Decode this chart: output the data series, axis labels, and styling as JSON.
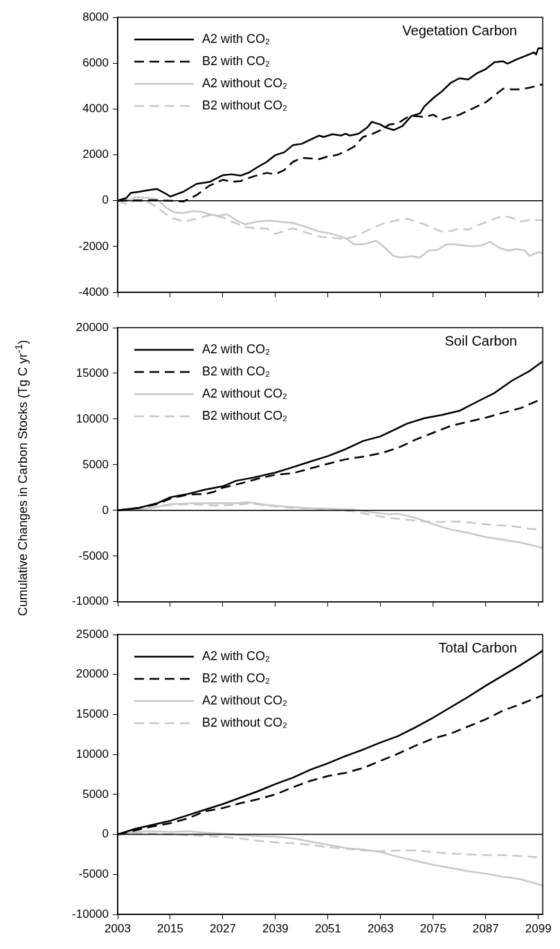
{
  "chart_data": [
    {
      "type": "line",
      "title": "Vegetation Carbon",
      "xlim": [
        2003,
        2100
      ],
      "xticks": [
        2003,
        2015,
        2027,
        2039,
        2051,
        2063,
        2075,
        2087,
        2099
      ],
      "ylim": [
        -4000,
        8000
      ],
      "yticks": [
        -4000,
        -2000,
        0,
        2000,
        4000,
        6000,
        8000
      ],
      "tick_labels": "y",
      "legend": "top left",
      "marker": "none",
      "ref_lines": [
        {
          "axis": "y",
          "value": 0,
          "color": "#000000"
        }
      ],
      "series": [
        {
          "name": "A2 with CO₂",
          "color": "#000000",
          "line_style": "solid",
          "x": [
            2003,
            2005,
            2006,
            2008,
            2010,
            2012,
            2014,
            2015,
            2018,
            2021,
            2024,
            2027,
            2029,
            2031,
            2033,
            2035,
            2037,
            2039,
            2041,
            2043,
            2045,
            2047,
            2049,
            2050,
            2052,
            2054,
            2055,
            2056,
            2058,
            2060,
            2061,
            2063,
            2064,
            2066,
            2068,
            2070,
            2072,
            2073,
            2075,
            2077,
            2079,
            2081,
            2083,
            2085,
            2087,
            2089,
            2091,
            2092,
            2094,
            2096,
            2098,
            2098.5,
            2099,
            2100
          ],
          "values": [
            0,
            120,
            340,
            390,
            460,
            510,
            300,
            180,
            390,
            730,
            820,
            1110,
            1150,
            1090,
            1230,
            1470,
            1690,
            1990,
            2110,
            2420,
            2480,
            2660,
            2840,
            2780,
            2900,
            2840,
            2920,
            2840,
            2920,
            3200,
            3440,
            3320,
            3200,
            3080,
            3260,
            3690,
            3810,
            4110,
            4470,
            4770,
            5140,
            5340,
            5290,
            5560,
            5740,
            6040,
            6080,
            5980,
            6160,
            6310,
            6470,
            6380,
            6650,
            6650
          ]
        },
        {
          "name": "B2 with CO₂",
          "color": "#000000",
          "line_style": "dashed",
          "x": [
            2003,
            2010,
            2015,
            2018,
            2021,
            2024,
            2027,
            2029,
            2031,
            2034,
            2037,
            2039,
            2041,
            2043,
            2045,
            2047,
            2049,
            2051,
            2053,
            2055,
            2057,
            2059,
            2061,
            2063,
            2065,
            2067,
            2069,
            2071,
            2073,
            2075,
            2077,
            2079,
            2081,
            2083,
            2085,
            2087,
            2089,
            2091,
            2093,
            2095,
            2097,
            2099,
            2100
          ],
          "values": [
            0,
            20,
            0,
            -40,
            240,
            660,
            910,
            820,
            850,
            1060,
            1210,
            1150,
            1330,
            1690,
            1870,
            1840,
            1810,
            1930,
            1990,
            2150,
            2360,
            2780,
            2900,
            3080,
            3320,
            3380,
            3630,
            3690,
            3650,
            3750,
            3530,
            3650,
            3750,
            3930,
            4110,
            4290,
            4590,
            4890,
            4860,
            4860,
            4930,
            5020,
            5080
          ]
        },
        {
          "name": "A2 without CO₂",
          "color": "#c8c8c8",
          "line_style": "solid",
          "x": [
            2003,
            2005,
            2007,
            2010,
            2012,
            2014,
            2016,
            2018,
            2020,
            2022,
            2024,
            2026,
            2028,
            2030,
            2032,
            2035,
            2038,
            2041,
            2043,
            2046,
            2049,
            2052,
            2055,
            2057,
            2059,
            2062,
            2064,
            2066,
            2068,
            2070,
            2072,
            2074,
            2076,
            2078,
            2080,
            2082,
            2084,
            2086,
            2088,
            2090,
            2092,
            2094,
            2096,
            2097,
            2099,
            2100
          ],
          "values": [
            0,
            0,
            150,
            120,
            60,
            -300,
            -510,
            -540,
            -460,
            -480,
            -600,
            -660,
            -600,
            -850,
            -1030,
            -910,
            -870,
            -940,
            -970,
            -1150,
            -1350,
            -1450,
            -1630,
            -1910,
            -1910,
            -1750,
            -2050,
            -2420,
            -2480,
            -2420,
            -2480,
            -2180,
            -2150,
            -1910,
            -1910,
            -1960,
            -1990,
            -1960,
            -1790,
            -2050,
            -2180,
            -2110,
            -2180,
            -2420,
            -2240,
            -2300
          ]
        },
        {
          "name": "B2 without CO₂",
          "color": "#c8c8c8",
          "line_style": "dashed",
          "x": [
            2003,
            2005,
            2007,
            2010,
            2012,
            2015,
            2018,
            2021,
            2024,
            2027,
            2029,
            2032,
            2035,
            2037,
            2039,
            2041,
            2043,
            2046,
            2049,
            2052,
            2055,
            2057,
            2059,
            2061,
            2064,
            2067,
            2069,
            2071,
            2073,
            2075,
            2077,
            2079,
            2081,
            2083,
            2085,
            2087,
            2089,
            2091,
            2093,
            2095,
            2097,
            2100
          ],
          "values": [
            0,
            -150,
            0,
            -60,
            -300,
            -730,
            -910,
            -790,
            -630,
            -730,
            -910,
            -1150,
            -1210,
            -1210,
            -1450,
            -1330,
            -1210,
            -1390,
            -1570,
            -1630,
            -1670,
            -1570,
            -1390,
            -1210,
            -970,
            -850,
            -790,
            -910,
            -1030,
            -1210,
            -1350,
            -1330,
            -1210,
            -1270,
            -1090,
            -940,
            -790,
            -660,
            -750,
            -910,
            -850,
            -850
          ]
        }
      ]
    },
    {
      "type": "line",
      "title": "Soil Carbon",
      "ylabel": "Cumulative Changes in Carbon Stocks (Tg C yr$^{-1}$)",
      "xlim": [
        2003,
        2100
      ],
      "xticks": [
        2003,
        2015,
        2027,
        2039,
        2051,
        2063,
        2075,
        2087,
        2099
      ],
      "ylim": [
        -10000,
        20000
      ],
      "yticks": [
        -10000,
        -5000,
        0,
        5000,
        10000,
        15000,
        20000
      ],
      "tick_labels": "y",
      "legend": "top left",
      "marker": "none",
      "ref_lines": [
        {
          "axis": "y",
          "value": 0,
          "color": "#000000"
        }
      ],
      "series": [
        {
          "name": "A2 with CO₂",
          "color": "#000000",
          "line_style": "solid",
          "x": [
            2003,
            2008,
            2012,
            2015,
            2019,
            2023,
            2027,
            2030,
            2034,
            2039,
            2043,
            2047,
            2051,
            2055,
            2059,
            2063,
            2066,
            2069,
            2073,
            2077,
            2081,
            2085,
            2089,
            2093,
            2097,
            2100
          ],
          "values": [
            0,
            300,
            780,
            1440,
            1800,
            2280,
            2640,
            3240,
            3600,
            4140,
            4740,
            5350,
            5950,
            6700,
            7600,
            8110,
            8800,
            9490,
            10090,
            10450,
            10900,
            11890,
            12850,
            14200,
            15260,
            16310
          ]
        },
        {
          "name": "B2 with CO₂",
          "color": "#000000",
          "line_style": "dashed",
          "x": [
            2003,
            2008,
            2012,
            2015,
            2019,
            2023,
            2025,
            2027,
            2031,
            2035,
            2039,
            2043,
            2047,
            2051,
            2055,
            2059,
            2063,
            2067,
            2071,
            2075,
            2079,
            2083,
            2087,
            2091,
            2095,
            2100
          ],
          "values": [
            0,
            300,
            690,
            1290,
            1740,
            1800,
            2040,
            2490,
            2940,
            3480,
            3900,
            4080,
            4590,
            5110,
            5590,
            5890,
            6250,
            6850,
            7750,
            8500,
            9250,
            9700,
            10150,
            10690,
            11200,
            12250
          ]
        },
        {
          "name": "A2 without CO₂",
          "color": "#c8c8c8",
          "line_style": "solid",
          "x": [
            2003,
            2008,
            2012,
            2015,
            2020,
            2025,
            2030,
            2033,
            2037,
            2042,
            2047,
            2052,
            2057,
            2061,
            2065,
            2067,
            2071,
            2075,
            2079,
            2083,
            2087,
            2091,
            2095,
            2100
          ],
          "values": [
            0,
            90,
            390,
            690,
            780,
            780,
            780,
            900,
            600,
            390,
            240,
            180,
            90,
            -210,
            -420,
            -360,
            -810,
            -1500,
            -2100,
            -2460,
            -2910,
            -3210,
            -3510,
            -4110
          ]
        },
        {
          "name": "B2 without CO₂",
          "color": "#c8c8c8",
          "line_style": "dashed",
          "x": [
            2003,
            2008,
            2012,
            2015,
            2020,
            2025,
            2030,
            2033,
            2037,
            2042,
            2047,
            2052,
            2057,
            2061,
            2065,
            2069,
            2073,
            2077,
            2081,
            2085,
            2089,
            2093,
            2097,
            2100
          ],
          "values": [
            0,
            90,
            390,
            600,
            690,
            540,
            600,
            780,
            540,
            300,
            180,
            90,
            -120,
            -510,
            -810,
            -1020,
            -1200,
            -1260,
            -1200,
            -1410,
            -1620,
            -1710,
            -2010,
            -2100
          ]
        }
      ]
    },
    {
      "type": "line",
      "title": "Total Carbon",
      "xlim": [
        2003,
        2100
      ],
      "xticks": [
        2003,
        2015,
        2027,
        2039,
        2051,
        2063,
        2075,
        2087,
        2099
      ],
      "ylim": [
        -10000,
        25000
      ],
      "yticks": [
        -10000,
        -5000,
        0,
        5000,
        10000,
        15000,
        20000,
        25000
      ],
      "legend": "top left",
      "marker": "none",
      "ref_lines": [
        {
          "axis": "y",
          "value": 0,
          "color": "#000000"
        }
      ],
      "series": [
        {
          "name": "A2 with CO₂",
          "color": "#000000",
          "line_style": "solid",
          "x": [
            2003,
            2007,
            2011,
            2015,
            2019,
            2023,
            2027,
            2031,
            2035,
            2039,
            2043,
            2047,
            2051,
            2055,
            2059,
            2063,
            2067,
            2071,
            2075,
            2079,
            2083,
            2087,
            2091,
            2095,
            2099,
            2100
          ],
          "values": [
            0,
            700,
            1200,
            1700,
            2400,
            3100,
            3800,
            4600,
            5400,
            6300,
            7100,
            8100,
            8900,
            9800,
            10600,
            11500,
            12300,
            13400,
            14600,
            15900,
            17200,
            18600,
            19900,
            21200,
            22600,
            23000
          ]
        },
        {
          "name": "B2 with CO₂",
          "color": "#000000",
          "line_style": "dashed",
          "x": [
            2003,
            2007,
            2011,
            2015,
            2019,
            2023,
            2027,
            2031,
            2035,
            2039,
            2043,
            2047,
            2051,
            2055,
            2059,
            2063,
            2067,
            2071,
            2075,
            2079,
            2083,
            2087,
            2091,
            2095,
            2100
          ],
          "values": [
            0,
            500,
            1000,
            1400,
            2000,
            2900,
            3300,
            3900,
            4400,
            5000,
            5900,
            6700,
            7300,
            7700,
            8300,
            9200,
            10100,
            11100,
            12000,
            12600,
            13500,
            14400,
            15500,
            16300,
            17400
          ]
        },
        {
          "name": "A2 without CO₂",
          "color": "#c8c8c8",
          "line_style": "solid",
          "x": [
            2003,
            2007,
            2011,
            2015,
            2019,
            2023,
            2027,
            2031,
            2035,
            2039,
            2043,
            2047,
            2051,
            2055,
            2059,
            2063,
            2067,
            2071,
            2075,
            2079,
            2083,
            2087,
            2091,
            2095,
            2100
          ],
          "values": [
            0,
            300,
            400,
            300,
            400,
            200,
            100,
            -100,
            -200,
            -300,
            -500,
            -900,
            -1300,
            -1700,
            -1900,
            -2200,
            -2800,
            -3300,
            -3800,
            -4200,
            -4600,
            -4900,
            -5300,
            -5600,
            -6400
          ]
        },
        {
          "name": "B2 without CO₂",
          "color": "#c8c8c8",
          "line_style": "dashed",
          "x": [
            2003,
            2007,
            2011,
            2015,
            2019,
            2023,
            2027,
            2031,
            2035,
            2039,
            2043,
            2047,
            2051,
            2055,
            2059,
            2063,
            2067,
            2071,
            2075,
            2079,
            2083,
            2087,
            2091,
            2095,
            2100
          ],
          "values": [
            0,
            200,
            100,
            0,
            -100,
            -200,
            -300,
            -500,
            -800,
            -1000,
            -1100,
            -1300,
            -1600,
            -1800,
            -2000,
            -2100,
            -2000,
            -2000,
            -2200,
            -2400,
            -2500,
            -2600,
            -2600,
            -2700,
            -2900
          ]
        }
      ]
    }
  ]
}
